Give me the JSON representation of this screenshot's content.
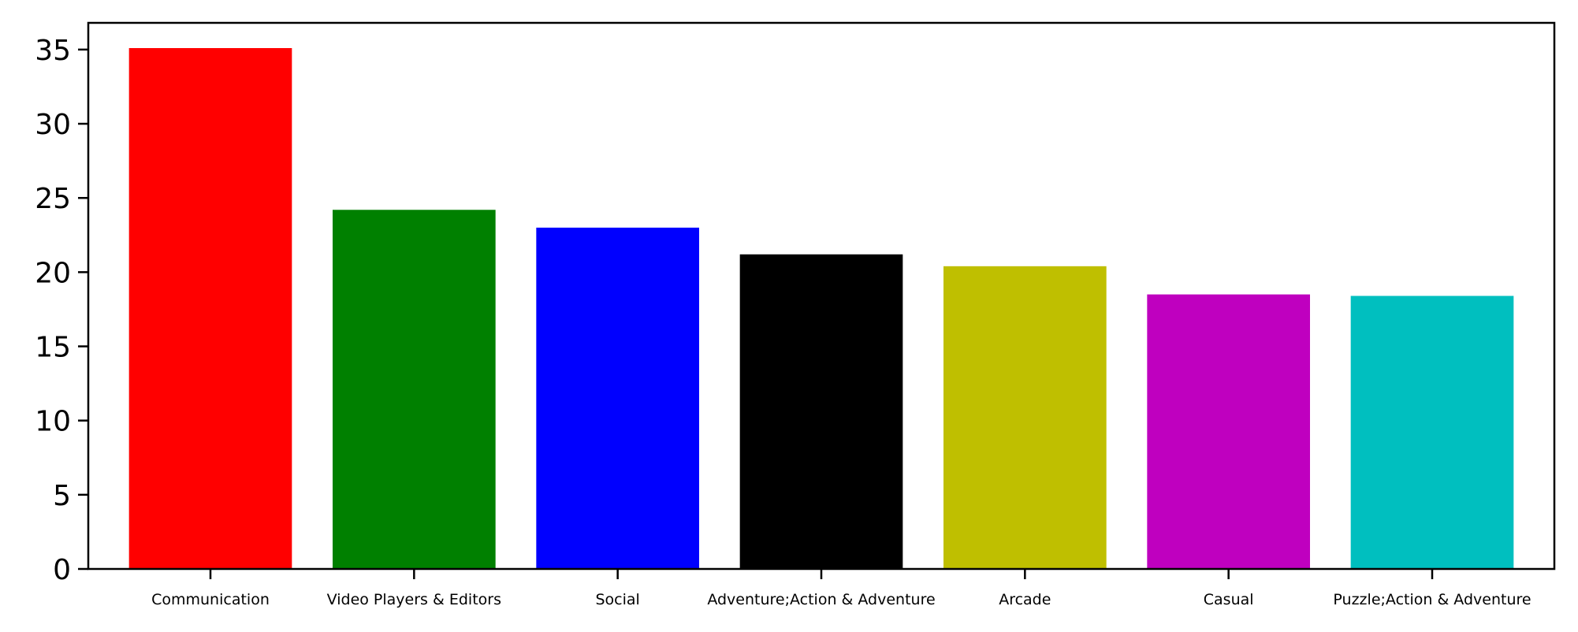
{
  "chart_data": {
    "type": "bar",
    "title": "",
    "xlabel": "",
    "ylabel": "",
    "categories": [
      "Communication",
      "Video Players & Editors",
      "Social",
      "Adventure;Action & Adventure",
      "Arcade",
      "Casual",
      "Puzzle;Action & Adventure"
    ],
    "values": [
      35.1,
      24.2,
      23.0,
      21.2,
      20.4,
      18.5,
      18.4
    ],
    "colors": [
      "#ff0000",
      "#008000",
      "#0000ff",
      "#000000",
      "#bfbf00",
      "#bf00bf",
      "#00bfbf"
    ],
    "ylim": [
      0,
      36.8
    ],
    "yticks": [
      0,
      5,
      10,
      15,
      20,
      25,
      30,
      35
    ],
    "grid": false,
    "legend": "none"
  }
}
